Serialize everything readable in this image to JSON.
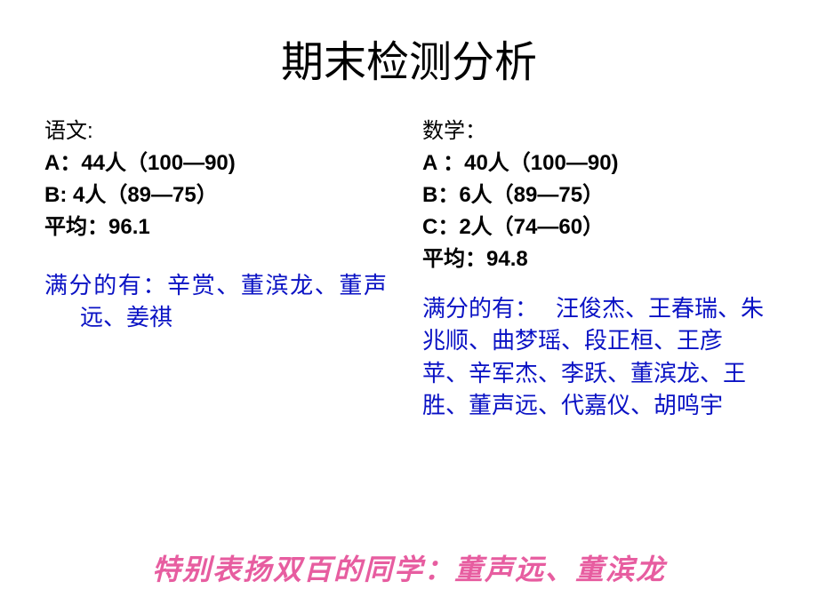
{
  "title": "期末检测分析",
  "chinese": {
    "label": "语文:",
    "a": "A：44人（100—90)",
    "b": "B:   4人（89—75）",
    "avg": "平均：96.1",
    "full_label": "满分的有：",
    "full_names": "辛赏、董滨龙、董声远、姜祺"
  },
  "math": {
    "label": "数学：",
    "a": "A ：40人（100—90)",
    "b": "B：6人（89—75）",
    "c": "C：2人（74—60）",
    "avg": "平均：94.8",
    "full_label": "满分的有：",
    "full_names": "汪俊杰、王春瑞、朱兆顺、曲梦瑶、段正桓、王彦苹、辛军杰、李跃、董滨龙、王胜、董声远、代嘉仪、胡鸣宇"
  },
  "footer": "特别表扬双百的同学：董声远、董滨龙",
  "colors": {
    "text_main": "#000000",
    "text_blue": "#0a12c4",
    "text_pink": "#e75da0",
    "background": "#ffffff"
  },
  "fonts": {
    "title_size": 48,
    "stats_size": 24,
    "fullscore_size": 26,
    "footer_size": 32
  }
}
